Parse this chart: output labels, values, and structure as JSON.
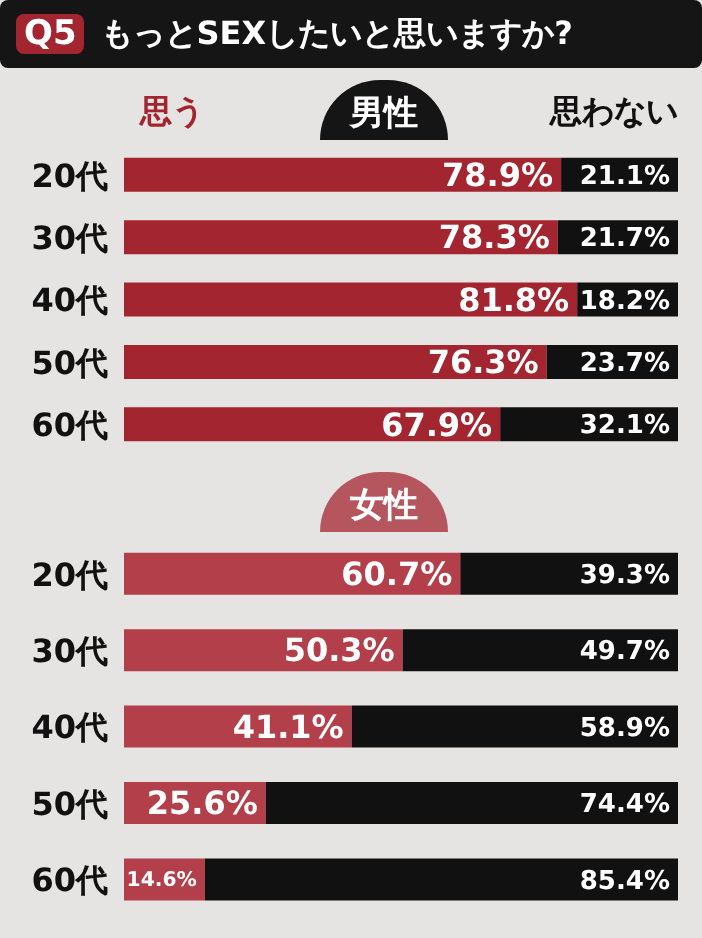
{
  "chart_data": [
    {
      "type": "bar",
      "orientation": "horizontal",
      "stacked": true,
      "title": "男性",
      "subtitle": "もっとSEXしたいと思いますか?",
      "annotations": [
        "Q5"
      ],
      "legend": "top",
      "categories": [
        "20代",
        "30代",
        "40代",
        "50代",
        "60代"
      ],
      "series": [
        {
          "name": "思う",
          "color": "#a3252f",
          "values": [
            78.9,
            78.3,
            81.8,
            76.3,
            67.9
          ],
          "value_labels": [
            "78.9%",
            "78.3%",
            "81.8%",
            "76.3%",
            "67.9%"
          ]
        },
        {
          "name": "思わない",
          "color": "#111111",
          "values": [
            21.1,
            21.7,
            18.2,
            23.7,
            32.1
          ],
          "value_labels": [
            "21.1%",
            "21.7%",
            "18.2%",
            "23.7%",
            "32.1%"
          ]
        }
      ]
    },
    {
      "type": "bar",
      "orientation": "horizontal",
      "stacked": true,
      "title": "女性",
      "categories": [
        "20代",
        "30代",
        "40代",
        "50代",
        "60代"
      ],
      "series": [
        {
          "color": "#b23f4a",
          "values": [
            60.7,
            50.3,
            41.1,
            25.6,
            14.6
          ],
          "value_labels": [
            "60.7%",
            "50.3%",
            "41.1%",
            "25.6%",
            "14.6%"
          ]
        },
        {
          "color": "#111111",
          "values": [
            39.3,
            49.7,
            58.9,
            74.4,
            85.4
          ],
          "value_labels": [
            "39.3%",
            "49.7%",
            "58.9%",
            "74.4%",
            "85.4%"
          ]
        }
      ]
    }
  ]
}
